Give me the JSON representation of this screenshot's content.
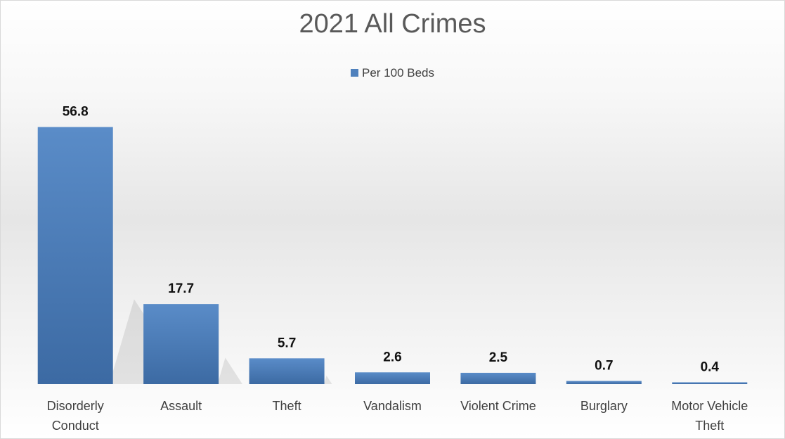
{
  "chart_data": {
    "type": "bar",
    "title": "2021 All Crimes",
    "categories": [
      "Disorderly Conduct",
      "Assault",
      "Theft",
      "Vandalism",
      "Violent Crime",
      "Burglary",
      "Motor Vehicle Theft"
    ],
    "category_lines": [
      [
        "Disorderly",
        "Conduct"
      ],
      [
        "Assault"
      ],
      [
        "Theft"
      ],
      [
        "Vandalism"
      ],
      [
        "Violent Crime"
      ],
      [
        "Burglary"
      ],
      [
        "Motor Vehicle",
        "Theft"
      ]
    ],
    "series": [
      {
        "name": "Per 100 Beds",
        "values": [
          56.8,
          17.7,
          5.7,
          2.6,
          2.5,
          0.7,
          0.4
        ],
        "labels": [
          "56.8",
          "17.7",
          "5.7",
          "2.6",
          "2.5",
          "0.7",
          "0.4"
        ]
      }
    ],
    "ylim": [
      0,
      60
    ],
    "xlabel": "",
    "ylabel": "",
    "grid": false,
    "legend_position": "top",
    "colors": {
      "bar": "#4f81bd",
      "bar_dark": "#3a6496"
    }
  }
}
